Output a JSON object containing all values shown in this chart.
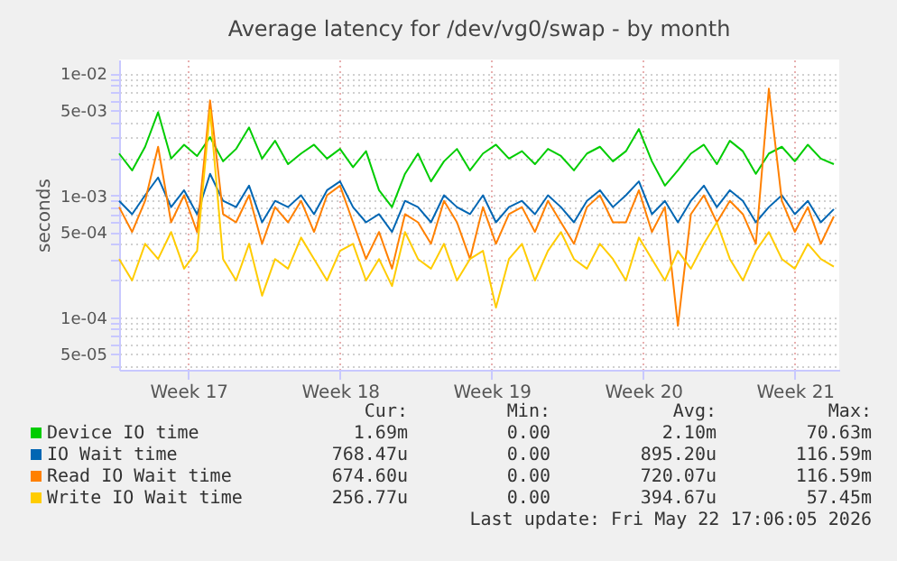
{
  "chart_data": {
    "type": "line",
    "title": "Average latency for /dev/vg0/swap - by month",
    "ylabel": "seconds",
    "log": true,
    "grid": true,
    "legend": "bottom",
    "marker": "none",
    "line_style": "solid",
    "xlim": [
      "2026-04-19T12:00",
      "2026-05-22T18:00"
    ],
    "xticks": [
      {
        "value": "2026-04-22T16:48",
        "label": "Week 17"
      },
      {
        "value": "2026-04-29T16:48",
        "label": "Week 18"
      },
      {
        "value": "2026-05-06T16:48",
        "label": "Week 19"
      },
      {
        "value": "2026-05-13T16:48",
        "label": "Week 20"
      },
      {
        "value": "2026-05-20T16:48",
        "label": "Week 21"
      }
    ],
    "ylim": [
      3.7e-05,
      0.013
    ],
    "yticks": [
      {
        "value": 4e-05,
        "label": null
      },
      {
        "value": 5e-05,
        "label": "5e-05"
      },
      {
        "value": 6e-05,
        "label": null
      },
      {
        "value": 7e-05,
        "label": null
      },
      {
        "value": 8e-05,
        "label": null
      },
      {
        "value": 9e-05,
        "label": null
      },
      {
        "value": 0.0001,
        "label": "1e-04"
      },
      {
        "value": 0.0002,
        "label": null
      },
      {
        "value": 0.0003,
        "label": null
      },
      {
        "value": 0.0004,
        "label": null
      },
      {
        "value": 0.0005,
        "label": "5e-04"
      },
      {
        "value": 0.0006,
        "label": null
      },
      {
        "value": 0.0007,
        "label": null
      },
      {
        "value": 0.0008,
        "label": null
      },
      {
        "value": 0.0009,
        "label": null
      },
      {
        "value": 0.001,
        "label": "1e-03"
      },
      {
        "value": 0.002,
        "label": null
      },
      {
        "value": 0.003,
        "label": null
      },
      {
        "value": 0.004,
        "label": null
      },
      {
        "value": 0.005,
        "label": "5e-03"
      },
      {
        "value": 0.006,
        "label": null
      },
      {
        "value": 0.007,
        "label": null
      },
      {
        "value": 0.008,
        "label": null
      },
      {
        "value": 0.009,
        "label": null
      },
      {
        "value": 0.01,
        "label": "1e-02"
      }
    ],
    "x": [
      "2026-04-19T12:00",
      "2026-04-20T02:24",
      "2026-04-20T16:48",
      "2026-04-21T07:12",
      "2026-04-21T21:36",
      "2026-04-22T12:00",
      "2026-04-23T02:24",
      "2026-04-23T16:48",
      "2026-04-24T07:12",
      "2026-04-24T21:36",
      "2026-04-25T12:00",
      "2026-04-26T02:24",
      "2026-04-26T16:48",
      "2026-04-27T07:12",
      "2026-04-27T21:36",
      "2026-04-28T12:00",
      "2026-04-29T02:24",
      "2026-04-29T16:48",
      "2026-04-30T07:12",
      "2026-04-30T21:36",
      "2026-05-01T12:00",
      "2026-05-02T02:24",
      "2026-05-02T16:48",
      "2026-05-03T07:12",
      "2026-05-03T21:36",
      "2026-05-04T12:00",
      "2026-05-05T02:24",
      "2026-05-05T16:48",
      "2026-05-06T07:12",
      "2026-05-06T21:36",
      "2026-05-07T12:00",
      "2026-05-08T02:24",
      "2026-05-08T16:48",
      "2026-05-09T07:12",
      "2026-05-09T21:36",
      "2026-05-10T12:00",
      "2026-05-11T02:24",
      "2026-05-11T16:48",
      "2026-05-12T07:12",
      "2026-05-12T21:36",
      "2026-05-13T12:00",
      "2026-05-14T02:24",
      "2026-05-14T16:48",
      "2026-05-15T07:12",
      "2026-05-15T21:36",
      "2026-05-16T12:00",
      "2026-05-17T02:24",
      "2026-05-17T16:48",
      "2026-05-18T07:12",
      "2026-05-18T21:36",
      "2026-05-19T12:00",
      "2026-05-20T02:24",
      "2026-05-20T16:48",
      "2026-05-21T07:12",
      "2026-05-21T21:36",
      "2026-05-22T12:00"
    ],
    "series": [
      {
        "name": "Device IO time",
        "color": "#00cc00",
        "values": [
          0.0022,
          0.0016,
          0.0025,
          0.0048,
          0.002,
          0.0026,
          0.0021,
          0.003,
          0.0019,
          0.0024,
          0.0036,
          0.002,
          0.0028,
          0.0018,
          0.0022,
          0.0026,
          0.002,
          0.0024,
          0.0017,
          0.0023,
          0.0011,
          0.0008,
          0.0015,
          0.0022,
          0.0013,
          0.0019,
          0.0024,
          0.0016,
          0.0022,
          0.0026,
          0.002,
          0.0023,
          0.0018,
          0.0024,
          0.0021,
          0.0016,
          0.0022,
          0.0025,
          0.0019,
          0.0023,
          0.0035,
          0.0019,
          0.0012,
          0.0016,
          0.0022,
          0.0026,
          0.0018,
          0.0028,
          0.0023,
          0.0015,
          0.0022,
          0.0025,
          0.0019,
          0.0026,
          0.002,
          0.0018
        ]
      },
      {
        "name": "IO Wait time",
        "color": "#0066b3",
        "values": [
          0.0009,
          0.0007,
          0.001,
          0.0014,
          0.0008,
          0.0011,
          0.0007,
          0.0015,
          0.0009,
          0.0008,
          0.0012,
          0.0006,
          0.0009,
          0.0008,
          0.001,
          0.0007,
          0.0011,
          0.0013,
          0.0008,
          0.0006,
          0.0007,
          0.0005,
          0.0009,
          0.0008,
          0.0006,
          0.001,
          0.0008,
          0.0007,
          0.001,
          0.0006,
          0.0008,
          0.0009,
          0.0007,
          0.001,
          0.0008,
          0.0006,
          0.0009,
          0.0011,
          0.0008,
          0.001,
          0.0013,
          0.0007,
          0.0009,
          0.0006,
          0.0009,
          0.0012,
          0.0008,
          0.0011,
          0.0009,
          0.0006,
          0.0008,
          0.001,
          0.0007,
          0.0009,
          0.0006,
          0.00077
        ]
      },
      {
        "name": "Read IO Wait time",
        "color": "#ff8000",
        "values": [
          0.0008,
          0.0005,
          0.0009,
          0.0025,
          0.0006,
          0.001,
          0.0005,
          0.006,
          0.0007,
          0.0006,
          0.001,
          0.0004,
          0.0008,
          0.0006,
          0.0009,
          0.0005,
          0.001,
          0.0012,
          0.0006,
          0.0003,
          0.0005,
          0.00025,
          0.0007,
          0.0006,
          0.0004,
          0.0009,
          0.0006,
          0.0003,
          0.0008,
          0.0004,
          0.0007,
          0.0008,
          0.0005,
          0.0009,
          0.0006,
          0.0004,
          0.0008,
          0.001,
          0.0006,
          0.0006,
          0.0011,
          0.0005,
          0.0008,
          8.5e-05,
          0.0007,
          0.001,
          0.0006,
          0.0009,
          0.0007,
          0.0004,
          0.0075,
          0.0009,
          0.0005,
          0.0008,
          0.0004,
          0.00067
        ]
      },
      {
        "name": "Write IO Wait time",
        "color": "#ffcc00",
        "values": [
          0.0003,
          0.0002,
          0.0004,
          0.0003,
          0.0005,
          0.00025,
          0.00035,
          0.005,
          0.0003,
          0.0002,
          0.0004,
          0.00015,
          0.0003,
          0.00025,
          0.00045,
          0.0003,
          0.0002,
          0.00035,
          0.0004,
          0.0002,
          0.0003,
          0.00018,
          0.0005,
          0.0003,
          0.00025,
          0.0004,
          0.0002,
          0.0003,
          0.00035,
          0.00012,
          0.0003,
          0.0004,
          0.0002,
          0.00035,
          0.0005,
          0.0003,
          0.00025,
          0.0004,
          0.0003,
          0.0002,
          0.00045,
          0.0003,
          0.0002,
          0.00035,
          0.00025,
          0.0004,
          0.0006,
          0.0003,
          0.0002,
          0.00035,
          0.0005,
          0.0003,
          0.00025,
          0.0004,
          0.0003,
          0.00026
        ]
      }
    ],
    "annotations": [
      "Cur:",
      "Min:",
      "Avg:",
      "Max:",
      "1.69m",
      "0.00",
      "2.10m",
      "70.63m",
      "768.47u",
      "0.00",
      "895.20u",
      "116.59m",
      "674.60u",
      "0.00",
      "720.07u",
      "116.59m",
      "256.77u",
      "0.00",
      "394.67u",
      "57.45m",
      "Last update: Fri May 22 17:06:05 2026"
    ]
  }
}
